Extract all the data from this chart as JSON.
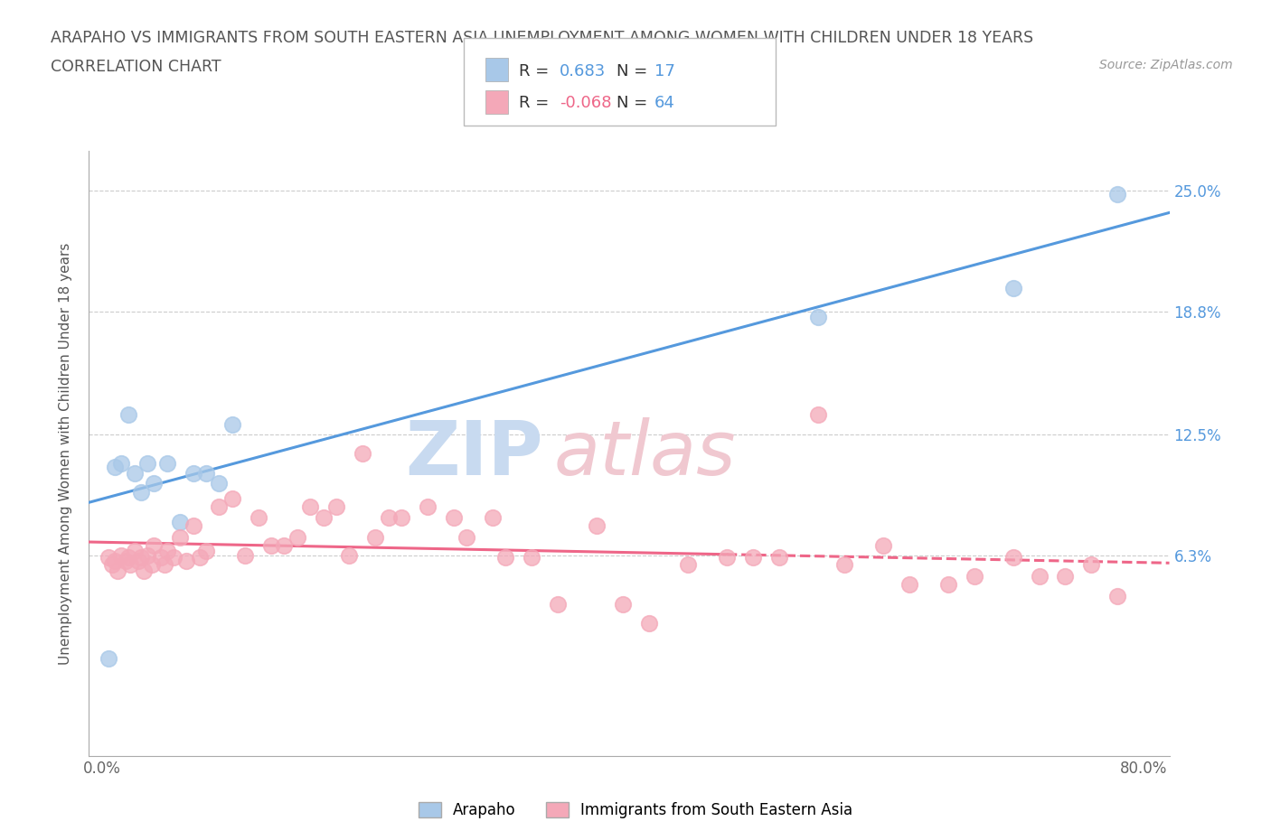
{
  "title_line1": "ARAPAHO VS IMMIGRANTS FROM SOUTH EASTERN ASIA UNEMPLOYMENT AMONG WOMEN WITH CHILDREN UNDER 18 YEARS",
  "title_line2": "CORRELATION CHART",
  "source_text": "Source: ZipAtlas.com",
  "ylabel": "Unemployment Among Women with Children Under 18 years",
  "xlim": [
    -0.01,
    0.82
  ],
  "ylim": [
    -0.04,
    0.27
  ],
  "ytick_vals": [
    0.063,
    0.125,
    0.188,
    0.25
  ],
  "ytick_labels_right": [
    "6.3%",
    "12.5%",
    "18.8%",
    "25.0%"
  ],
  "xtick_vals": [
    0.0,
    0.1,
    0.2,
    0.3,
    0.4,
    0.5,
    0.6,
    0.7,
    0.8
  ],
  "xtick_labels": [
    "0.0%",
    "",
    "",
    "",
    "",
    "",
    "",
    "",
    "80.0%"
  ],
  "arapaho_color": "#a8c8e8",
  "immigrant_color": "#f4a8b8",
  "arapaho_line_color": "#5599dd",
  "immigrant_line_color": "#ee6688",
  "R_arapaho": "0.683",
  "N_arapaho": "17",
  "R_immigrant": "-0.068",
  "N_immigrant": "64",
  "arapaho_x": [
    0.005,
    0.01,
    0.015,
    0.02,
    0.025,
    0.03,
    0.035,
    0.04,
    0.05,
    0.06,
    0.07,
    0.08,
    0.09,
    0.1,
    0.55,
    0.7,
    0.78
  ],
  "arapaho_y": [
    0.01,
    0.108,
    0.11,
    0.135,
    0.105,
    0.095,
    0.11,
    0.1,
    0.11,
    0.08,
    0.105,
    0.105,
    0.1,
    0.13,
    0.185,
    0.2,
    0.248
  ],
  "immigrant_x": [
    0.005,
    0.008,
    0.01,
    0.012,
    0.015,
    0.018,
    0.02,
    0.022,
    0.025,
    0.028,
    0.03,
    0.032,
    0.035,
    0.038,
    0.04,
    0.045,
    0.048,
    0.05,
    0.055,
    0.06,
    0.065,
    0.07,
    0.075,
    0.08,
    0.09,
    0.1,
    0.11,
    0.12,
    0.13,
    0.14,
    0.15,
    0.16,
    0.17,
    0.18,
    0.19,
    0.2,
    0.21,
    0.22,
    0.23,
    0.25,
    0.27,
    0.28,
    0.3,
    0.31,
    0.33,
    0.35,
    0.38,
    0.4,
    0.42,
    0.45,
    0.48,
    0.5,
    0.52,
    0.55,
    0.57,
    0.6,
    0.62,
    0.65,
    0.67,
    0.7,
    0.72,
    0.74,
    0.76,
    0.78
  ],
  "immigrant_y": [
    0.062,
    0.058,
    0.06,
    0.055,
    0.063,
    0.06,
    0.062,
    0.058,
    0.065,
    0.06,
    0.062,
    0.055,
    0.063,
    0.058,
    0.068,
    0.062,
    0.058,
    0.065,
    0.062,
    0.072,
    0.06,
    0.078,
    0.062,
    0.065,
    0.088,
    0.092,
    0.063,
    0.082,
    0.068,
    0.068,
    0.072,
    0.088,
    0.082,
    0.088,
    0.063,
    0.115,
    0.072,
    0.082,
    0.082,
    0.088,
    0.082,
    0.072,
    0.082,
    0.062,
    0.062,
    0.038,
    0.078,
    0.038,
    0.028,
    0.058,
    0.062,
    0.062,
    0.062,
    0.135,
    0.058,
    0.068,
    0.048,
    0.048,
    0.052,
    0.062,
    0.052,
    0.052,
    0.058,
    0.042
  ],
  "watermark_zip_color": "#c8daf0",
  "watermark_atlas_color": "#f0c8d0"
}
